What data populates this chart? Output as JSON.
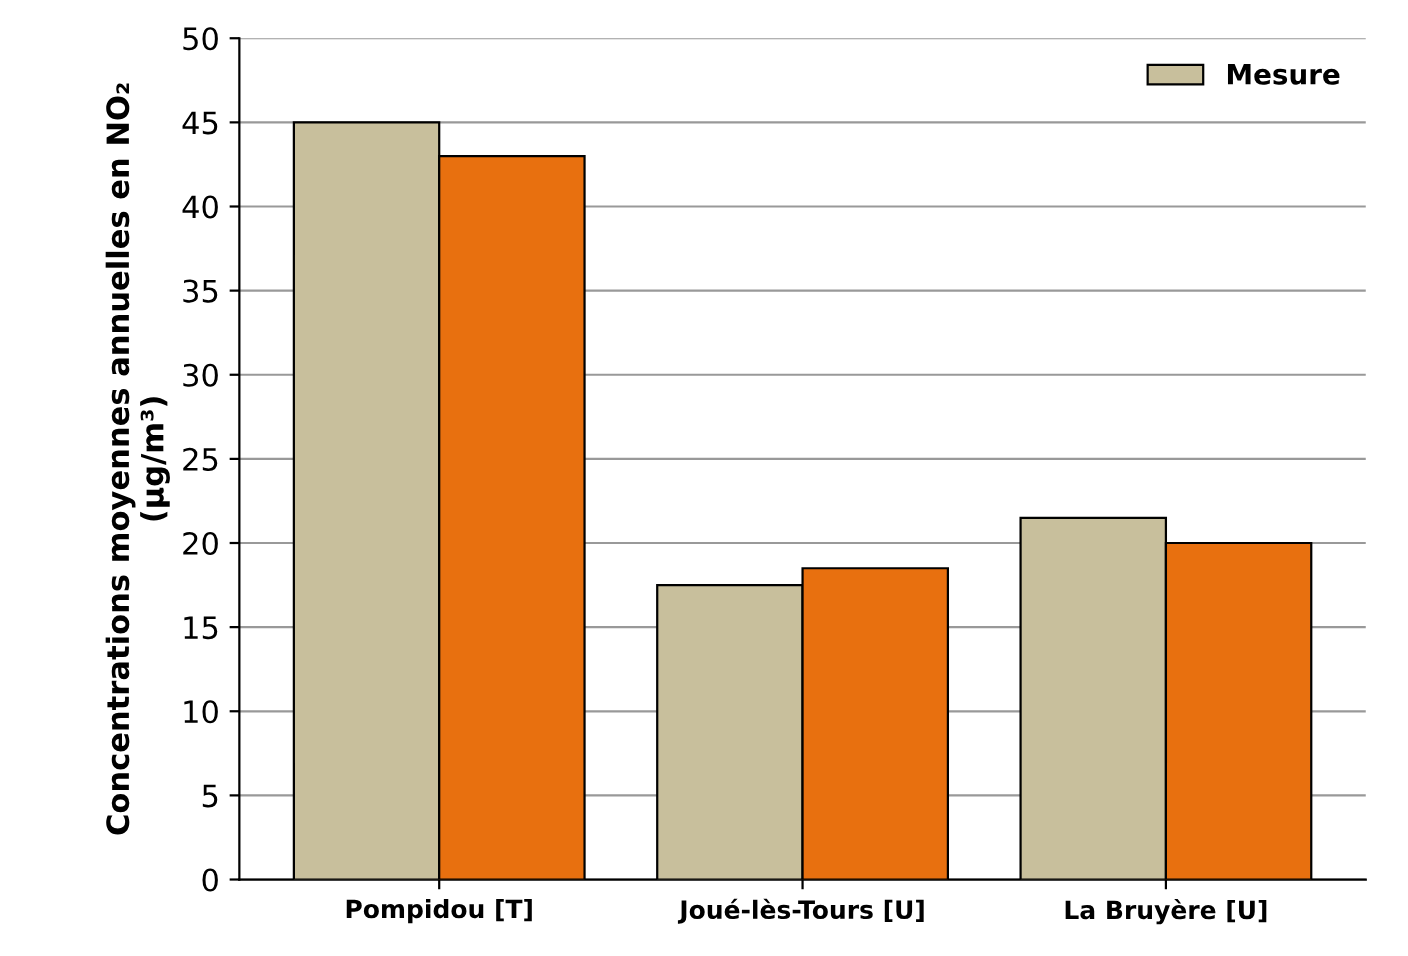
{
  "chart_data": {
    "type": "bar",
    "ylabel": "Concentrations moyennes annuelles en NO₂\n(µg/m³)",
    "categories": [
      "Pompidou [T]",
      "Joué-lès-Tours [U]",
      "La Bruyère [U]"
    ],
    "series": [
      {
        "name": "Mesure",
        "color": "#c8bf9c",
        "values": [
          45,
          17.5,
          21.5
        ]
      },
      {
        "color": "#e8700f",
        "values": [
          43,
          18.5,
          20
        ]
      }
    ],
    "ylim": [
      0,
      50
    ],
    "yticks": [
      0,
      5,
      10,
      15,
      20,
      25,
      30,
      35,
      40,
      45,
      50
    ],
    "grid": "y",
    "legend": "top right"
  }
}
